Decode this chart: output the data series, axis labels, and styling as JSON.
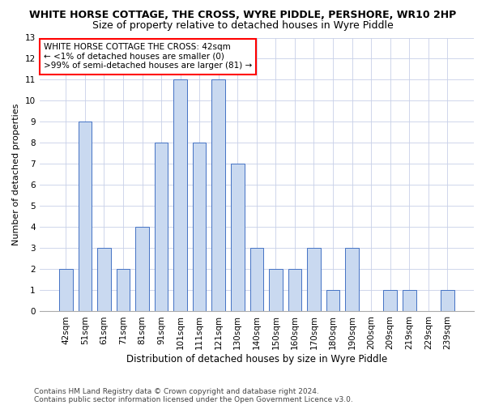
{
  "title1": "WHITE HORSE COTTAGE, THE CROSS, WYRE PIDDLE, PERSHORE, WR10 2HP",
  "title2": "Size of property relative to detached houses in Wyre Piddle",
  "xlabel": "Distribution of detached houses by size in Wyre Piddle",
  "ylabel": "Number of detached properties",
  "categories": [
    "42sqm",
    "51sqm",
    "61sqm",
    "71sqm",
    "81sqm",
    "91sqm",
    "101sqm",
    "111sqm",
    "121sqm",
    "130sqm",
    "140sqm",
    "150sqm",
    "160sqm",
    "170sqm",
    "180sqm",
    "190sqm",
    "200sqm",
    "209sqm",
    "219sqm",
    "229sqm",
    "239sqm"
  ],
  "values": [
    2,
    9,
    3,
    2,
    4,
    8,
    11,
    8,
    11,
    7,
    3,
    2,
    2,
    3,
    1,
    3,
    0,
    1,
    1,
    0,
    1
  ],
  "bar_color": "#c9d9f0",
  "bar_edge_color": "#4472c4",
  "annotation_text": "WHITE HORSE COTTAGE THE CROSS: 42sqm\n← <1% of detached houses are smaller (0)\n>99% of semi-detached houses are larger (81) →",
  "ylim": [
    0,
    13
  ],
  "yticks": [
    0,
    1,
    2,
    3,
    4,
    5,
    6,
    7,
    8,
    9,
    10,
    11,
    12,
    13
  ],
  "footer1": "Contains HM Land Registry data © Crown copyright and database right 2024.",
  "footer2": "Contains public sector information licensed under the Open Government Licence v3.0.",
  "bg_color": "#ffffff",
  "grid_color": "#c8d0e8",
  "title1_fontsize": 9,
  "title2_fontsize": 9,
  "xlabel_fontsize": 8.5,
  "ylabel_fontsize": 8,
  "tick_fontsize": 7.5,
  "annotation_fontsize": 7.5,
  "footer_fontsize": 6.5
}
